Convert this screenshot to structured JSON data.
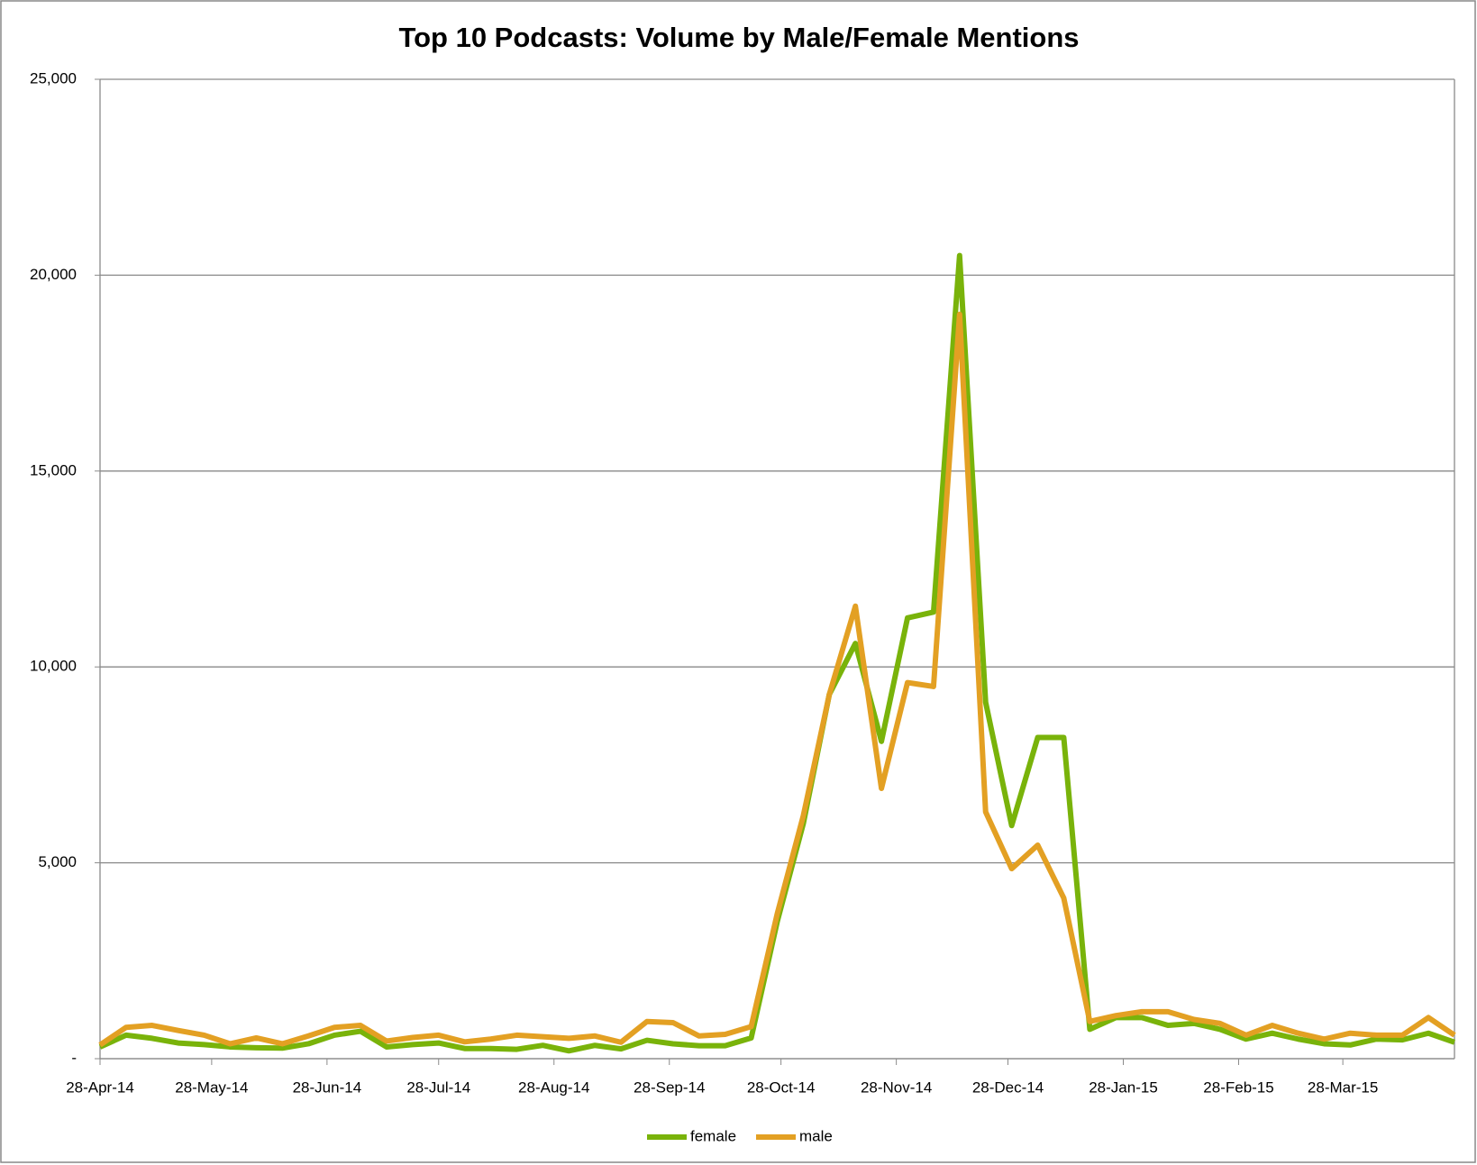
{
  "chart_data": {
    "type": "line",
    "title": "Top 10 Podcasts: Volume by Male/Female Mentions",
    "x": [
      "2014-04-28",
      "2014-05-05",
      "2014-05-12",
      "2014-05-19",
      "2014-05-26",
      "2014-06-02",
      "2014-06-09",
      "2014-06-16",
      "2014-06-23",
      "2014-06-30",
      "2014-07-07",
      "2014-07-14",
      "2014-07-21",
      "2014-07-28",
      "2014-08-04",
      "2014-08-11",
      "2014-08-18",
      "2014-08-25",
      "2014-09-01",
      "2014-09-08",
      "2014-09-15",
      "2014-09-22",
      "2014-09-29",
      "2014-10-06",
      "2014-10-13",
      "2014-10-20",
      "2014-10-27",
      "2014-11-03",
      "2014-11-10",
      "2014-11-17",
      "2014-11-24",
      "2014-12-01",
      "2014-12-08",
      "2014-12-15",
      "2014-12-22",
      "2014-12-29",
      "2015-01-05",
      "2015-01-12",
      "2015-01-19",
      "2015-01-26",
      "2015-02-02",
      "2015-02-09",
      "2015-02-16",
      "2015-02-23",
      "2015-03-02",
      "2015-03-09",
      "2015-03-16",
      "2015-03-23",
      "2015-03-30",
      "2015-04-06",
      "2015-04-13",
      "2015-04-20",
      "2015-04-27"
    ],
    "series": [
      {
        "name": "female",
        "color": "#79b30a",
        "values": [
          300,
          600,
          520,
          400,
          360,
          300,
          280,
          270,
          380,
          600,
          700,
          300,
          360,
          400,
          260,
          260,
          240,
          340,
          200,
          340,
          250,
          470,
          380,
          330,
          330,
          530,
          3500,
          6000,
          9300,
          10600,
          8100,
          11250,
          11400,
          20500,
          9100,
          5950,
          8200,
          8200,
          750,
          1050,
          1050,
          850,
          900,
          750,
          500,
          650,
          500,
          380,
          350,
          500,
          480,
          650,
          420
        ]
      },
      {
        "name": "male",
        "color": "#e3a023",
        "values": [
          350,
          800,
          850,
          720,
          600,
          380,
          530,
          380,
          580,
          800,
          850,
          450,
          540,
          600,
          430,
          500,
          600,
          560,
          520,
          580,
          420,
          950,
          920,
          580,
          620,
          820,
          3700,
          6200,
          9300,
          11550,
          6900,
          9600,
          9500,
          19000,
          6300,
          4850,
          5450,
          4100,
          950,
          1100,
          1200,
          1200,
          1000,
          900,
          600,
          850,
          650,
          500,
          650,
          600,
          600,
          1050,
          600
        ]
      }
    ],
    "xlim": [
      "2014-04-28",
      "2015-04-27"
    ],
    "xticks": [
      {
        "value": "2014-04-28",
        "label": "28-Apr-14"
      },
      {
        "value": "2014-05-28",
        "label": "28-May-14"
      },
      {
        "value": "2014-06-28",
        "label": "28-Jun-14"
      },
      {
        "value": "2014-07-28",
        "label": "28-Jul-14"
      },
      {
        "value": "2014-08-28",
        "label": "28-Aug-14"
      },
      {
        "value": "2014-09-28",
        "label": "28-Sep-14"
      },
      {
        "value": "2014-10-28",
        "label": "28-Oct-14"
      },
      {
        "value": "2014-11-28",
        "label": "28-Nov-14"
      },
      {
        "value": "2014-12-28",
        "label": "28-Dec-14"
      },
      {
        "value": "2015-01-28",
        "label": "28-Jan-15"
      },
      {
        "value": "2015-02-28",
        "label": "28-Feb-15"
      },
      {
        "value": "2015-03-28",
        "label": "28-Mar-15"
      }
    ],
    "ylim": [
      0,
      25000
    ],
    "yticks": [
      {
        "value": 0,
        "label": "-"
      },
      {
        "value": 5000,
        "label": "5,000"
      },
      {
        "value": 10000,
        "label": "10,000"
      },
      {
        "value": 15000,
        "label": "15,000"
      },
      {
        "value": 20000,
        "label": "20,000"
      },
      {
        "value": 25000,
        "label": "25,000"
      }
    ],
    "grid": true,
    "legend": "bottom"
  }
}
